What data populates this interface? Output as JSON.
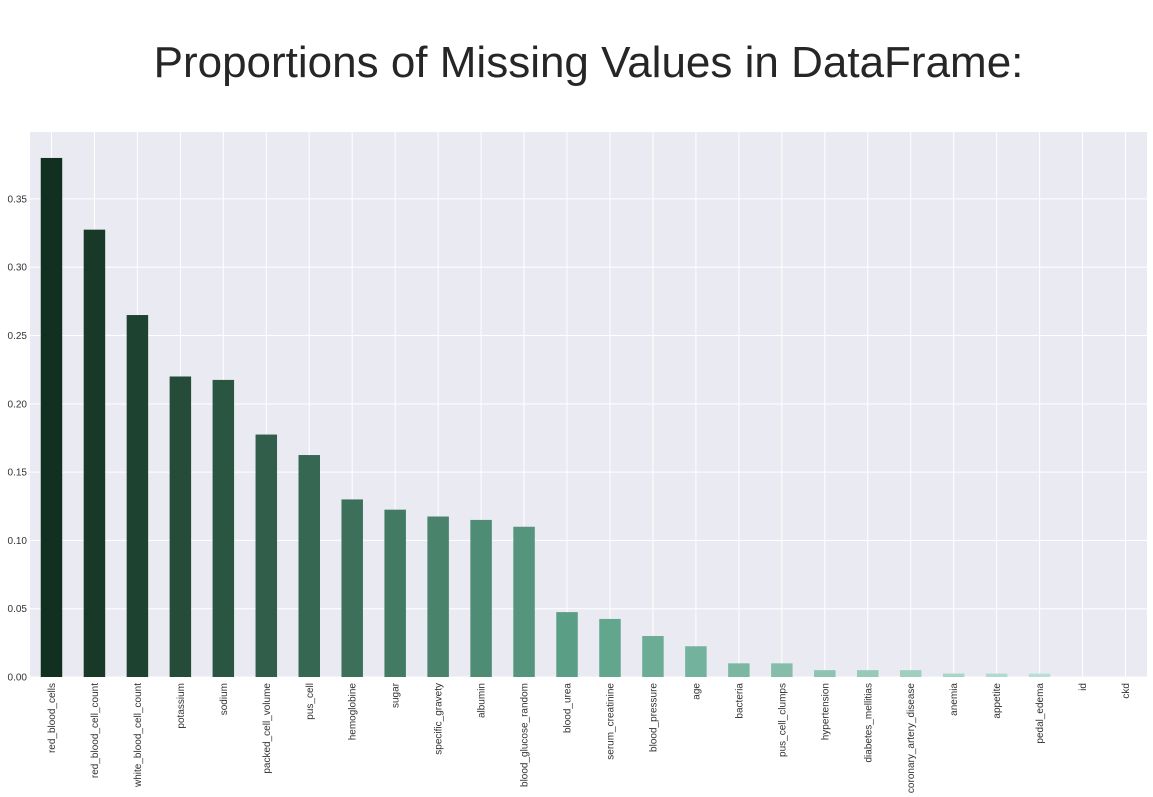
{
  "chart_data": {
    "type": "bar",
    "title": "Proportions of Missing Values in DataFrame:",
    "xlabel": "",
    "ylabel": "",
    "ylim": [
      0,
      0.399
    ],
    "yticks": [
      "0.00",
      "0.05",
      "0.10",
      "0.15",
      "0.20",
      "0.25",
      "0.30",
      "0.35"
    ],
    "grid": true,
    "style": "seaborn-darkgrid",
    "colors": {
      "background": "#eaeaf2",
      "grid": "#ffffff",
      "palette_dark": "#12301f",
      "palette_light": "#c9ece2"
    },
    "categories": [
      "red_blood_cells",
      "red_blood_cell_count",
      "white_blood_cell_count",
      "potassium",
      "sodium",
      "packed_cell_volume",
      "pus_cell",
      "hemoglobine",
      "sugar",
      "specific_gravety",
      "albumin",
      "blood_glucose_random",
      "blood_urea",
      "serum_creatinine",
      "blood_pressure",
      "age",
      "bacteria",
      "pus_cell_clumps",
      "hypertension",
      "diabetes_mellitias",
      "coronary_artery_disease",
      "anemia",
      "appetite",
      "pedal_edema",
      "id",
      "ckd"
    ],
    "values": [
      0.38,
      0.3275,
      0.265,
      0.22,
      0.2175,
      0.1775,
      0.1625,
      0.13,
      0.1225,
      0.1175,
      0.115,
      0.11,
      0.0475,
      0.0425,
      0.03,
      0.0225,
      0.01,
      0.01,
      0.005,
      0.005,
      0.005,
      0.0025,
      0.0025,
      0.0025,
      0.0,
      0.0
    ]
  }
}
